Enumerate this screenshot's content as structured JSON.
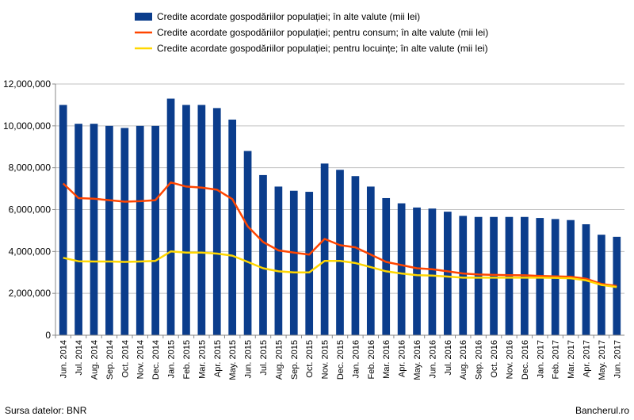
{
  "chart_data": {
    "type": "bar",
    "categories": [
      "Jun. 2014",
      "Jul. 2014",
      "Aug. 2014",
      "Sep. 2014",
      "Oct. 2014",
      "Nov. 2014",
      "Dec. 2014",
      "Jan. 2015",
      "Feb. 2015",
      "Mar. 2015",
      "Apr. 2015",
      "May. 2015",
      "Jun. 2015",
      "Jul. 2015",
      "Aug. 2015",
      "Sep. 2015",
      "Oct. 2015",
      "Nov. 2015",
      "Dec. 2015",
      "Jan. 2016",
      "Feb. 2016",
      "Mar. 2016",
      "Apr. 2016",
      "May. 2016",
      "Jun. 2016",
      "Jul. 2016",
      "Aug. 2016",
      "Sep. 2016",
      "Oct. 2016",
      "Nov. 2016",
      "Dec. 2016",
      "Jan. 2017",
      "Feb. 2017",
      "Mar. 2017",
      "Apr. 2017",
      "May. 2017",
      "Jun. 2017"
    ],
    "ylim": [
      0,
      12000000
    ],
    "yticks": [
      "0",
      "2,000,000",
      "4,000,000",
      "6,000,000",
      "8,000,000",
      "10,000,000",
      "12,000,000"
    ],
    "grid": true,
    "legend_position": "top",
    "series": [
      {
        "name": "Credite acordate gospodăriilor populației; în alte valute (mii lei)",
        "type": "bar",
        "color": "#0b3d8c",
        "values": [
          11000000,
          10100000,
          10100000,
          10000000,
          9900000,
          10000000,
          10000000,
          11300000,
          11000000,
          11000000,
          10850000,
          10300000,
          8800000,
          7650000,
          7100000,
          6900000,
          6850000,
          8200000,
          7900000,
          7600000,
          7100000,
          6550000,
          6300000,
          6100000,
          6050000,
          5900000,
          5700000,
          5650000,
          5650000,
          5650000,
          5650000,
          5600000,
          5550000,
          5500000,
          5300000,
          4800000,
          4700000
        ]
      },
      {
        "name": "Credite acordate gospodăriilor populației; pentru consum; în alte valute (mii lei)",
        "type": "line",
        "color": "#ff4500",
        "values": [
          7250000,
          6550000,
          6520000,
          6450000,
          6380000,
          6400000,
          6450000,
          7300000,
          7100000,
          7050000,
          6950000,
          6500000,
          5200000,
          4450000,
          4050000,
          3950000,
          3850000,
          4600000,
          4300000,
          4200000,
          3850000,
          3500000,
          3350000,
          3200000,
          3150000,
          3050000,
          2950000,
          2900000,
          2880000,
          2870000,
          2860000,
          2830000,
          2810000,
          2790000,
          2700000,
          2450000,
          2350000
        ]
      },
      {
        "name": "Credite acordate gospodăriilor populației; pentru locuințe; în alte valute (mii lei)",
        "type": "line",
        "color": "#ffd700",
        "values": [
          3700000,
          3530000,
          3520000,
          3520000,
          3500000,
          3520000,
          3550000,
          4000000,
          3950000,
          3950000,
          3900000,
          3800000,
          3500000,
          3200000,
          3050000,
          3000000,
          3000000,
          3550000,
          3550000,
          3450000,
          3250000,
          3050000,
          2950000,
          2870000,
          2850000,
          2800000,
          2750000,
          2750000,
          2750000,
          2750000,
          2750000,
          2750000,
          2740000,
          2720000,
          2620000,
          2400000,
          2300000
        ]
      }
    ]
  },
  "footer": {
    "source": "Sursa datelor: BNR",
    "brand": "Bancherul.ro"
  }
}
